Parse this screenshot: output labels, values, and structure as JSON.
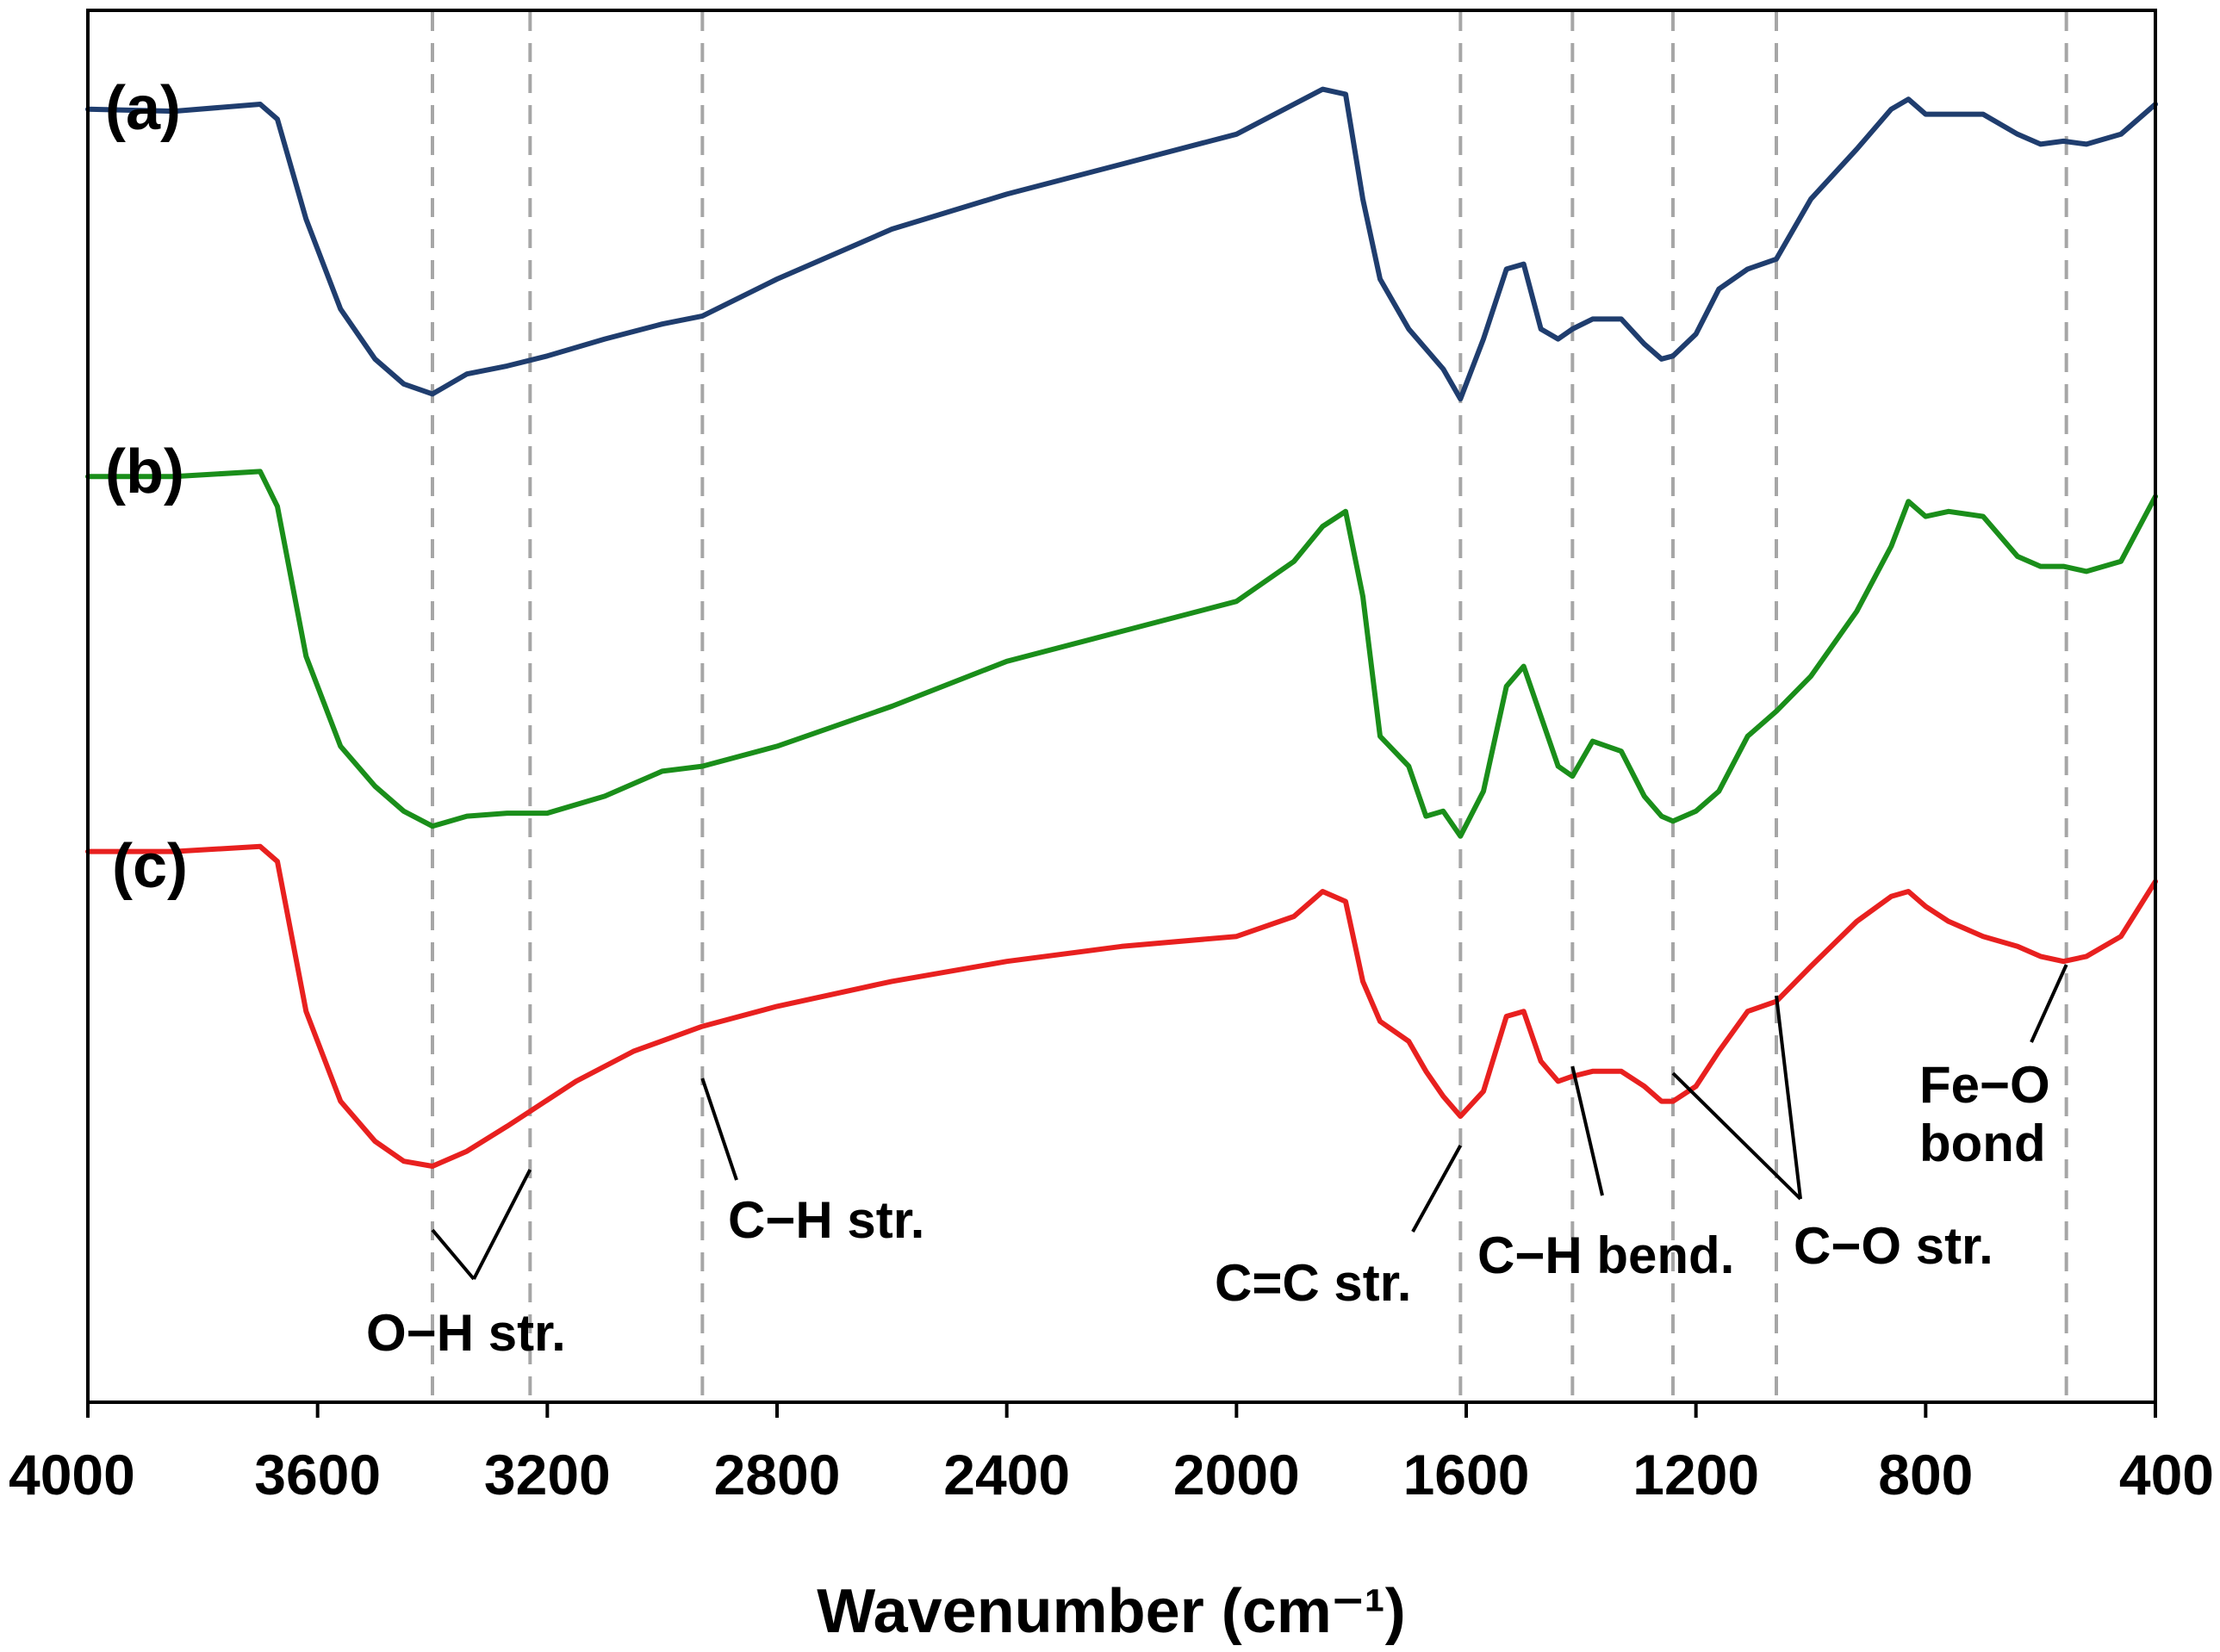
{
  "chart_data": {
    "type": "line",
    "title": "",
    "xlabel": "Wavenumber (cm⁻¹)",
    "ylabel": "",
    "xlim": [
      4000,
      400
    ],
    "x_reversed": true,
    "xticks": [
      4000,
      3600,
      3200,
      2800,
      2400,
      2000,
      1600,
      1200,
      800,
      400
    ],
    "xtick_labels": [
      "4000",
      "3600",
      "3200",
      "2800",
      "2400",
      "2000",
      "1600",
      "1200",
      "800",
      "400"
    ],
    "y_axis_visible": false,
    "ylim": [
      0,
      100
    ],
    "grid": false,
    "reference_lines_cm1": [
      3400,
      3230,
      2930,
      1610,
      1415,
      1240,
      1060,
      555
    ],
    "series": [
      {
        "name": "(a)",
        "color": "#1f3d6e",
        "x": [
          4000,
          3850,
          3700,
          3670,
          3620,
          3560,
          3500,
          3450,
          3400,
          3340,
          3270,
          3200,
          3100,
          3000,
          2930,
          2800,
          2600,
          2400,
          2200,
          2000,
          1900,
          1850,
          1810,
          1780,
          1750,
          1700,
          1670,
          1640,
          1610,
          1570,
          1530,
          1500,
          1470,
          1440,
          1415,
          1380,
          1330,
          1290,
          1260,
          1240,
          1200,
          1160,
          1110,
          1060,
          1000,
          920,
          860,
          830,
          800,
          760,
          700,
          640,
          600,
          560,
          520,
          460,
          400
        ],
        "y": [
          97,
          96.8,
          97.5,
          96,
          86,
          77,
          72,
          69.5,
          68.5,
          70.5,
          71.3,
          72.3,
          74,
          75.5,
          76.3,
          80,
          85,
          88.5,
          91.5,
          94.5,
          97.5,
          99,
          98.5,
          88,
          80,
          75,
          73,
          71,
          68,
          74,
          81,
          81.5,
          75,
          74,
          75,
          76,
          76,
          73.5,
          72,
          72.3,
          74.5,
          79,
          81,
          82,
          88,
          93,
          97,
          98,
          96.5,
          96.5,
          96.5,
          94.5,
          93.5,
          93.8,
          93.5,
          94.5,
          97.5
        ]
      },
      {
        "name": "(b)",
        "color": "#1a8e1a",
        "x": [
          4000,
          3850,
          3700,
          3670,
          3620,
          3560,
          3500,
          3450,
          3400,
          3340,
          3270,
          3200,
          3100,
          3000,
          2930,
          2800,
          2600,
          2400,
          2200,
          2000,
          1900,
          1850,
          1810,
          1780,
          1750,
          1700,
          1670,
          1640,
          1610,
          1570,
          1530,
          1500,
          1470,
          1440,
          1415,
          1380,
          1330,
          1290,
          1260,
          1240,
          1200,
          1160,
          1110,
          1060,
          1000,
          920,
          860,
          830,
          800,
          760,
          700,
          640,
          600,
          560,
          520,
          460,
          400
        ],
        "y": [
          98,
          98,
          98.5,
          95,
          80,
          71,
          67,
          64.5,
          63,
          64,
          64.3,
          64.3,
          66,
          68.5,
          69,
          71,
          75,
          79.5,
          82.5,
          85.5,
          89.5,
          93,
          94.5,
          86,
          72,
          69,
          64,
          64.5,
          62,
          66.5,
          77,
          79,
          74,
          69,
          68,
          71.5,
          70.5,
          66,
          64,
          63.5,
          64.5,
          66.5,
          72,
          74.5,
          78,
          84.5,
          91,
          95.5,
          94,
          94.5,
          94,
          90,
          89,
          89,
          88.5,
          89.5,
          96
        ]
      },
      {
        "name": "(c)",
        "color": "#e8201f",
        "x": [
          4000,
          3850,
          3700,
          3670,
          3620,
          3560,
          3500,
          3450,
          3400,
          3340,
          3270,
          3230,
          3150,
          3050,
          2930,
          2800,
          2600,
          2400,
          2200,
          2000,
          1900,
          1850,
          1810,
          1780,
          1750,
          1700,
          1670,
          1640,
          1610,
          1570,
          1530,
          1500,
          1470,
          1440,
          1415,
          1380,
          1330,
          1290,
          1260,
          1240,
          1200,
          1160,
          1110,
          1060,
          1000,
          920,
          860,
          830,
          800,
          760,
          700,
          640,
          600,
          560,
          520,
          460,
          400
        ],
        "y": [
          99,
          99,
          99.5,
          98,
          83,
          74,
          70,
          68,
          67.5,
          69,
          71.5,
          73,
          76,
          79,
          81.5,
          83.5,
          86,
          88,
          89.5,
          90.5,
          92.5,
          95,
          94,
          86,
          82,
          80,
          77,
          74.5,
          72.5,
          75,
          82.5,
          83,
          78,
          76,
          76.5,
          77,
          77,
          75.5,
          74,
          74,
          75.5,
          79,
          83,
          84,
          87.5,
          92,
          94.5,
          95,
          93.5,
          92,
          90.5,
          89.5,
          88.5,
          88,
          88.5,
          90.5,
          96
        ]
      }
    ],
    "panel_labels": [
      "(a)",
      "(b)",
      "(c)"
    ],
    "annotations": [
      {
        "text": "O−H str.",
        "x_cm1": [
          3400,
          3230
        ]
      },
      {
        "text": "C−H str.",
        "x_cm1": [
          2930
        ]
      },
      {
        "text": "C=C str.",
        "x_cm1": [
          1610
        ]
      },
      {
        "text": "C−H bend.",
        "x_cm1": [
          1415
        ]
      },
      {
        "text": "C−O str.",
        "x_cm1": [
          1240,
          1060
        ]
      },
      {
        "text": "Fe−O",
        "x_cm1": [
          555
        ]
      },
      {
        "text": "bond",
        "x_cm1": [
          555
        ]
      }
    ]
  }
}
